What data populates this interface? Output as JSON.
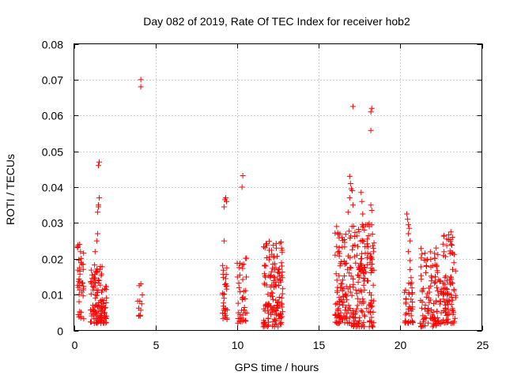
{
  "chart_data": {
    "type": "scatter",
    "title": "Day 082 of 2019, Rate Of TEC Index for receiver hob2",
    "xlabel": "GPS time / hours",
    "ylabel": "ROTI / TECUs",
    "xlim": [
      0,
      25
    ],
    "ylim": [
      0,
      0.08
    ],
    "grid": true,
    "marker": "+",
    "color": "#ff0000",
    "x_ticks": [
      {
        "value": 0,
        "label": "0"
      },
      {
        "value": 5,
        "label": "5"
      },
      {
        "value": 10,
        "label": "10"
      },
      {
        "value": 15,
        "label": "15"
      },
      {
        "value": 20,
        "label": "20"
      },
      {
        "value": 25,
        "label": "25"
      }
    ],
    "y_ticks": [
      {
        "value": 0,
        "label": "0"
      },
      {
        "value": 0.01,
        "label": "0.01"
      },
      {
        "value": 0.02,
        "label": "0.02"
      },
      {
        "value": 0.03,
        "label": "0.03"
      },
      {
        "value": 0.04,
        "label": "0.04"
      },
      {
        "value": 0.05,
        "label": "0.05"
      },
      {
        "value": 0.06,
        "label": "0.06"
      },
      {
        "value": 0.07,
        "label": "0.07"
      },
      {
        "value": 0.08,
        "label": "0.08"
      }
    ],
    "clusters": [
      {
        "x_range": [
          0.2,
          0.6
        ],
        "y_range": [
          0.003,
          0.024
        ],
        "count": 40
      },
      {
        "x_range": [
          1.0,
          2.0
        ],
        "y_range": [
          0.002,
          0.02
        ],
        "count": 120
      },
      {
        "x_range": [
          3.9,
          4.2
        ],
        "y_range": [
          0.004,
          0.012
        ],
        "count": 10
      },
      {
        "x_range": [
          9.1,
          9.4
        ],
        "y_range": [
          0.003,
          0.02
        ],
        "count": 30
      },
      {
        "x_range": [
          10.0,
          10.6
        ],
        "y_range": [
          0.002,
          0.021
        ],
        "count": 40
      },
      {
        "x_range": [
          11.6,
          12.8
        ],
        "y_range": [
          0.001,
          0.025
        ],
        "count": 150
      },
      {
        "x_range": [
          16.0,
          17.0
        ],
        "y_range": [
          0.002,
          0.028
        ],
        "count": 110
      },
      {
        "x_range": [
          17.0,
          18.4
        ],
        "y_range": [
          0.001,
          0.03
        ],
        "count": 160
      },
      {
        "x_range": [
          20.2,
          20.8
        ],
        "y_range": [
          0.002,
          0.015
        ],
        "count": 40
      },
      {
        "x_range": [
          21.2,
          22.6
        ],
        "y_range": [
          0.001,
          0.023
        ],
        "count": 110
      },
      {
        "x_range": [
          22.6,
          23.4
        ],
        "y_range": [
          0.002,
          0.027
        ],
        "count": 90
      }
    ],
    "points": [
      {
        "x": 0.35,
        "y": 0.024
      },
      {
        "x": 0.4,
        "y": 0.022
      },
      {
        "x": 1.3,
        "y": 0.022
      },
      {
        "x": 1.4,
        "y": 0.025
      },
      {
        "x": 1.45,
        "y": 0.027
      },
      {
        "x": 1.45,
        "y": 0.033
      },
      {
        "x": 1.5,
        "y": 0.0345
      },
      {
        "x": 1.5,
        "y": 0.035
      },
      {
        "x": 1.55,
        "y": 0.037
      },
      {
        "x": 1.5,
        "y": 0.046
      },
      {
        "x": 1.55,
        "y": 0.047
      },
      {
        "x": 4.1,
        "y": 0.068
      },
      {
        "x": 4.1,
        "y": 0.07
      },
      {
        "x": 4.0,
        "y": 0.0125
      },
      {
        "x": 4.1,
        "y": 0.013
      },
      {
        "x": 9.2,
        "y": 0.025
      },
      {
        "x": 9.2,
        "y": 0.0345
      },
      {
        "x": 9.25,
        "y": 0.0365
      },
      {
        "x": 9.3,
        "y": 0.037
      },
      {
        "x": 9.35,
        "y": 0.036
      },
      {
        "x": 10.3,
        "y": 0.04
      },
      {
        "x": 10.35,
        "y": 0.0432
      },
      {
        "x": 16.1,
        "y": 0.029
      },
      {
        "x": 16.3,
        "y": 0.027
      },
      {
        "x": 16.9,
        "y": 0.043
      },
      {
        "x": 16.95,
        "y": 0.041
      },
      {
        "x": 17.0,
        "y": 0.0395
      },
      {
        "x": 17.05,
        "y": 0.039
      },
      {
        "x": 16.9,
        "y": 0.037
      },
      {
        "x": 17.1,
        "y": 0.035
      },
      {
        "x": 16.8,
        "y": 0.033
      },
      {
        "x": 17.1,
        "y": 0.0625
      },
      {
        "x": 17.6,
        "y": 0.0385
      },
      {
        "x": 17.65,
        "y": 0.036
      },
      {
        "x": 17.7,
        "y": 0.0325
      },
      {
        "x": 17.8,
        "y": 0.028
      },
      {
        "x": 18.2,
        "y": 0.061
      },
      {
        "x": 18.25,
        "y": 0.062
      },
      {
        "x": 18.2,
        "y": 0.0558
      },
      {
        "x": 18.2,
        "y": 0.035
      },
      {
        "x": 18.25,
        "y": 0.0335
      },
      {
        "x": 18.1,
        "y": 0.029
      },
      {
        "x": 20.4,
        "y": 0.0325
      },
      {
        "x": 20.45,
        "y": 0.031
      },
      {
        "x": 20.5,
        "y": 0.0295
      },
      {
        "x": 20.55,
        "y": 0.0285
      },
      {
        "x": 20.5,
        "y": 0.027
      },
      {
        "x": 20.6,
        "y": 0.025
      },
      {
        "x": 20.5,
        "y": 0.022
      },
      {
        "x": 20.6,
        "y": 0.0195
      },
      {
        "x": 20.6,
        "y": 0.017
      },
      {
        "x": 22.2,
        "y": 0.023
      },
      {
        "x": 22.1,
        "y": 0.0215
      },
      {
        "x": 23.1,
        "y": 0.0275
      },
      {
        "x": 23.2,
        "y": 0.026
      }
    ]
  }
}
